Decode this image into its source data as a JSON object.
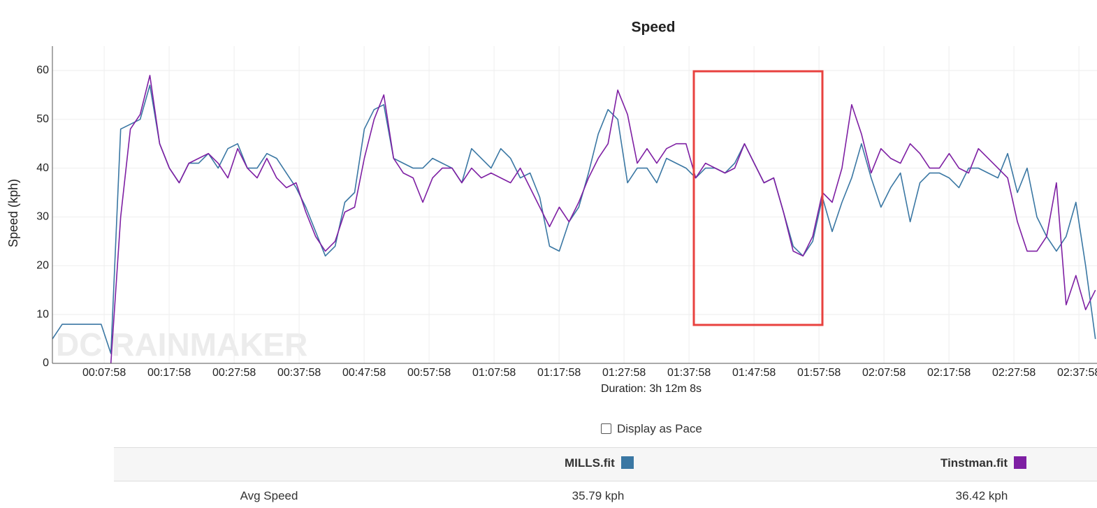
{
  "chart_data": {
    "type": "line",
    "title": "Speed",
    "ylabel": "Speed (kph)",
    "xlabel": "Duration: 3h 12m 8s",
    "watermark": "DC RAINMAKER",
    "x": [
      0,
      90,
      180,
      270,
      360,
      450,
      540,
      630,
      720,
      810,
      900,
      990,
      1080,
      1170,
      1260,
      1350,
      1440,
      1530,
      1620,
      1710,
      1800,
      1890,
      1980,
      2070,
      2160,
      2250,
      2340,
      2430,
      2520,
      2610,
      2700,
      2790,
      2880,
      2970,
      3060,
      3150,
      3240,
      3330,
      3420,
      3510,
      3600,
      3690,
      3780,
      3870,
      3960,
      4050,
      4140,
      4230,
      4320,
      4410,
      4500,
      4590,
      4680,
      4770,
      4860,
      4950,
      5040,
      5130,
      5220,
      5310,
      5400,
      5490,
      5580,
      5670,
      5760,
      5850,
      5940,
      6030,
      6120,
      6210,
      6300,
      6390,
      6480,
      6570,
      6660,
      6750,
      6840,
      6930,
      7020,
      7110,
      7200,
      7290,
      7380,
      7470,
      7560,
      7650,
      7740,
      7830,
      7920,
      8010,
      8100,
      8190,
      8280,
      8370,
      8460,
      8550,
      8640,
      8730,
      8820,
      8910,
      9000,
      9090,
      9180,
      9270,
      9360,
      9450,
      9540,
      9630
    ],
    "series": [
      {
        "name": "MILLS.fit",
        "color": "#3a77a3",
        "values": [
          5,
          8,
          8,
          8,
          8,
          8,
          2,
          48,
          49,
          50,
          57,
          45,
          40,
          37,
          41,
          41,
          43,
          40,
          44,
          45,
          40,
          40,
          43,
          42,
          39,
          36,
          32,
          27,
          22,
          24,
          33,
          35,
          48,
          52,
          53,
          42,
          41,
          40,
          40,
          42,
          41,
          40,
          37,
          44,
          42,
          40,
          44,
          42,
          38,
          39,
          34,
          24,
          23,
          29,
          32,
          39,
          47,
          52,
          50,
          37,
          40,
          40,
          37,
          42,
          41,
          40,
          38,
          40,
          40,
          39,
          41,
          45,
          41,
          37,
          38,
          31,
          24,
          22,
          25,
          34,
          27,
          33,
          38,
          45,
          38,
          32,
          36,
          39,
          29,
          37,
          39,
          39,
          38,
          36,
          40,
          40,
          39,
          38,
          43,
          35,
          40,
          30,
          26,
          23,
          26,
          33,
          20,
          5
        ]
      },
      {
        "name": "Tinstman.fit",
        "color": "#7e1fa3",
        "values": [
          null,
          null,
          null,
          null,
          null,
          null,
          0,
          30,
          48,
          51,
          59,
          45,
          40,
          37,
          41,
          42,
          43,
          41,
          38,
          44,
          40,
          38,
          42,
          38,
          36,
          37,
          31,
          26,
          23,
          25,
          31,
          32,
          42,
          50,
          55,
          42,
          39,
          38,
          33,
          38,
          40,
          40,
          37,
          40,
          38,
          39,
          38,
          37,
          40,
          36,
          32,
          28,
          32,
          29,
          33,
          38,
          42,
          45,
          56,
          51,
          41,
          44,
          41,
          44,
          45,
          45,
          38,
          41,
          40,
          39,
          40,
          45,
          41,
          37,
          38,
          31,
          23,
          22,
          26,
          35,
          33,
          40,
          53,
          47,
          39,
          44,
          42,
          41,
          45,
          43,
          40,
          40,
          43,
          40,
          39,
          44,
          42,
          40,
          38,
          29,
          23,
          23,
          26,
          37,
          12,
          18,
          11,
          15
        ]
      }
    ],
    "xlim": [
      0,
      9632
    ],
    "ylim": [
      0,
      65
    ],
    "xticks": [
      {
        "value": 478,
        "label": "00:07:58"
      },
      {
        "value": 1078,
        "label": "00:17:58"
      },
      {
        "value": 1678,
        "label": "00:27:58"
      },
      {
        "value": 2278,
        "label": "00:37:58"
      },
      {
        "value": 2878,
        "label": "00:47:58"
      },
      {
        "value": 3478,
        "label": "00:57:58"
      },
      {
        "value": 4078,
        "label": "01:07:58"
      },
      {
        "value": 4678,
        "label": "01:17:58"
      },
      {
        "value": 5278,
        "label": "01:27:58"
      },
      {
        "value": 5878,
        "label": "01:37:58"
      },
      {
        "value": 6478,
        "label": "01:47:58"
      },
      {
        "value": 7078,
        "label": "01:57:58"
      },
      {
        "value": 7678,
        "label": "02:07:58"
      },
      {
        "value": 8278,
        "label": "02:17:58"
      },
      {
        "value": 8878,
        "label": "02:27:58"
      },
      {
        "value": 9478,
        "label": "02:37:58"
      }
    ],
    "yticks": [
      0,
      10,
      20,
      30,
      40,
      50,
      60
    ],
    "grid": true
  },
  "pace_toggle": "Display as Pace",
  "table": {
    "rows": [
      [
        "Avg Speed",
        "35.79 kph",
        "36.42 kph"
      ]
    ]
  }
}
